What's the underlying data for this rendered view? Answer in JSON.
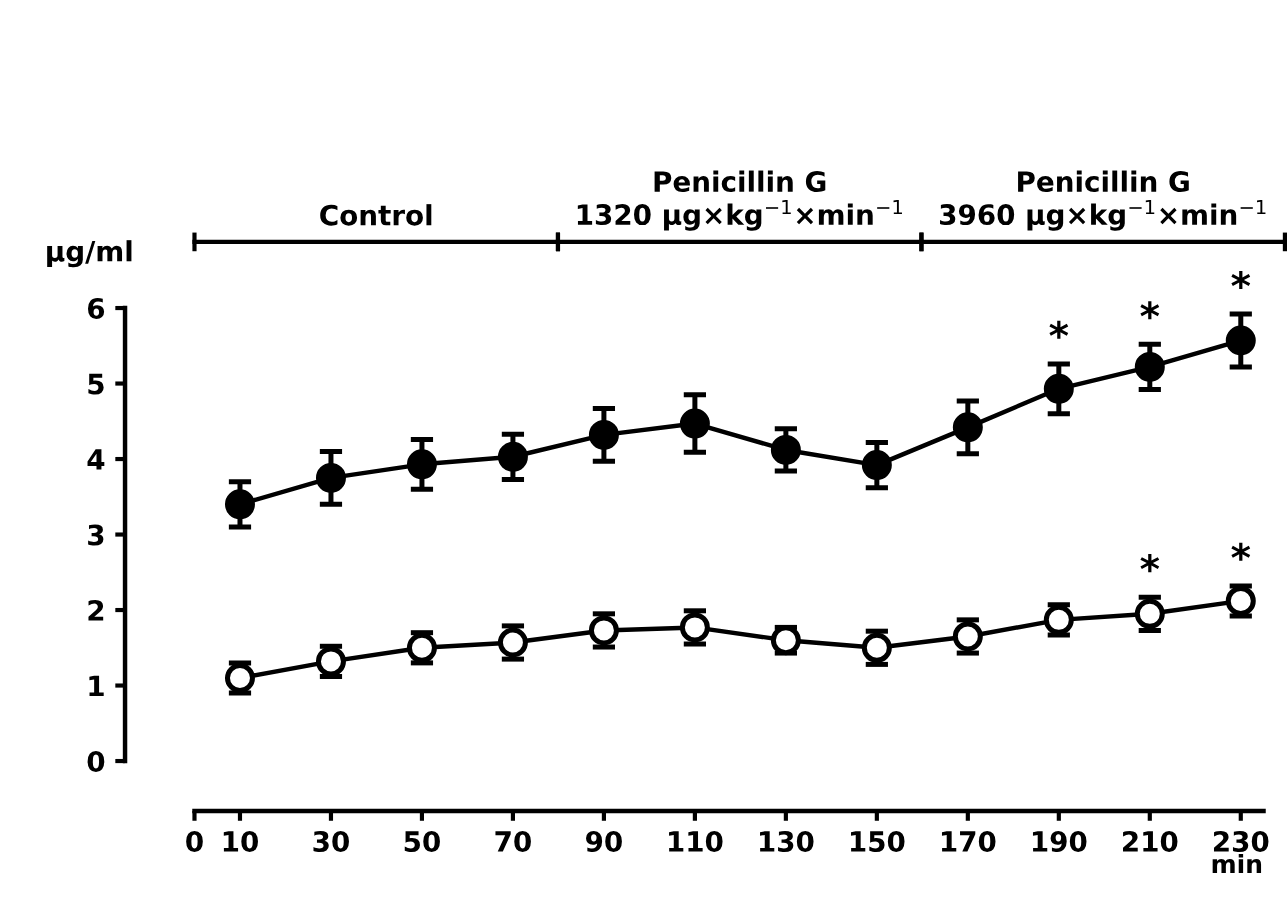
{
  "chart_data": {
    "type": "line",
    "ylabel": "μg/ml",
    "xlabel": "min",
    "x": [
      10,
      30,
      50,
      70,
      90,
      110,
      130,
      150,
      170,
      190,
      210,
      230
    ],
    "series": [
      {
        "color": "#000000",
        "values": [
          3.4,
          3.75,
          3.93,
          4.03,
          4.32,
          4.47,
          4.12,
          3.92,
          4.42,
          4.93,
          5.22,
          5.57
        ],
        "errors": [
          0.3,
          0.35,
          0.33,
          0.3,
          0.35,
          0.38,
          0.28,
          0.3,
          0.35,
          0.33,
          0.3,
          0.35
        ]
      },
      {
        "color": "#000000",
        "values": [
          1.1,
          1.32,
          1.5,
          1.57,
          1.73,
          1.77,
          1.6,
          1.5,
          1.65,
          1.87,
          1.95,
          2.12
        ],
        "errors": [
          0.2,
          0.2,
          0.2,
          0.22,
          0.22,
          0.22,
          0.17,
          0.22,
          0.22,
          0.2,
          0.22,
          0.2
        ]
      }
    ],
    "xlim": [
      0,
      235
    ],
    "xticks": [
      0,
      10,
      30,
      50,
      70,
      90,
      110,
      130,
      150,
      170,
      190,
      210,
      230
    ],
    "ylim": [
      0,
      6
    ],
    "yticks": [
      0,
      1,
      2,
      3,
      4,
      5,
      6
    ],
    "annotations": [
      "Control",
      "Penicillin G\n1320 μg×kg$^{−1}$×min$^{−1}$",
      "Penicillin G\n3960 μg×kg$^{−1}$×min$^{−1}$",
      {
        "text": "*",
        "x": 190,
        "y": 4.93
      },
      {
        "text": "*",
        "x": 210,
        "y": 5.22
      },
      {
        "text": "*",
        "x": 230,
        "y": 5.57
      },
      {
        "text": "*",
        "x": 210,
        "y": 1.95
      },
      {
        "text": "*",
        "x": 230,
        "y": 2.12
      }
    ],
    "marker": "circle",
    "line_style": "solid",
    "grid": false,
    "legend": false
  }
}
